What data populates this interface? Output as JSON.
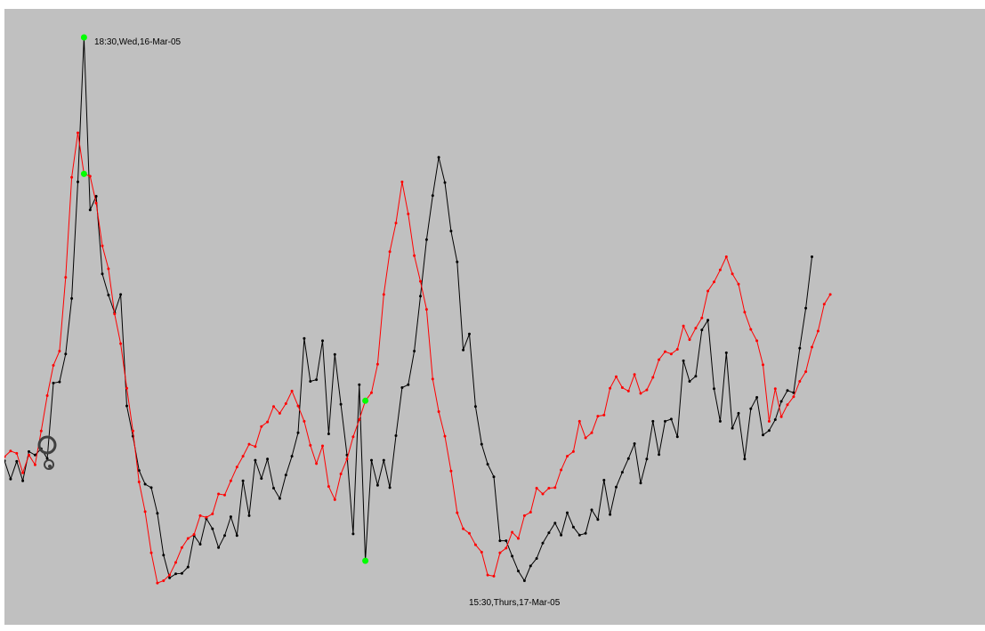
{
  "chart_data": {
    "type": "line",
    "title": "",
    "xlabel": "",
    "ylabel": "",
    "grid": false,
    "legend": "none",
    "colors": {
      "background": "#c0c0c0",
      "series_black": "#000000",
      "series_red": "#ff0000",
      "marker_highlight": "#00ff00",
      "cursor": "#404040"
    },
    "x_range": [
      0,
      160
    ],
    "y_range": [
      0,
      100
    ],
    "series": [
      {
        "color": "#000000",
        "values": [
          25.9,
          22.7,
          25.8,
          22.4,
          27.5,
          26.9,
          28.0,
          26.3,
          39.5,
          39.7,
          44.6,
          54.3,
          74.7,
          100.0,
          69.8,
          72.2,
          58.6,
          54.9,
          51.8,
          55.0,
          35.5,
          30.2,
          24.2,
          21.8,
          21.2,
          16.7,
          9.4,
          5.4,
          6.1,
          6.2,
          7.3,
          12.8,
          11.3,
          15.8,
          14.0,
          10.7,
          12.8,
          16.1,
          12.8,
          22.4,
          16.3,
          26.0,
          22.8,
          26.2,
          21.1,
          19.3,
          23.4,
          26.7,
          30.8,
          47.3,
          39.8,
          40.1,
          46.9,
          30.6,
          44.5,
          35.8,
          26.9,
          13.1,
          39.2,
          8.4,
          26.0,
          21.6,
          26.0,
          21.2,
          30.3,
          38.7,
          39.2,
          45.1,
          54.7,
          64.6,
          72.3,
          79.0,
          74.6,
          66.1,
          60.7,
          45.3,
          48.1,
          35.4,
          28.8,
          25.3,
          23.1,
          11.9,
          11.9,
          9.2,
          6.6,
          4.9,
          7.5,
          8.8,
          11.5,
          13.3,
          15.0,
          12.9,
          16.8,
          14.3,
          12.9,
          13.2,
          17.3,
          15.6,
          22.5,
          16.5,
          21.3,
          23.9,
          26.3,
          28.9,
          22.0,
          26.2,
          32.8,
          27.0,
          32.8,
          33.2,
          30.1,
          43.4,
          39.8,
          40.7,
          48.8,
          50.5,
          38.5,
          32.8,
          44.8,
          31.6,
          34.2,
          26.2,
          35.0,
          37.0,
          30.4,
          31.2,
          33.1,
          36.3,
          38.2,
          37.8,
          45.6,
          52.6,
          61.6
        ]
      },
      {
        "color": "#ff0000",
        "values": [
          26.6,
          27.6,
          27.2,
          23.8,
          26.9,
          25.2,
          31.1,
          37.3,
          42.6,
          45.1,
          58.0,
          75.5,
          83.3,
          76.1,
          75.7,
          71.0,
          63.5,
          59.5,
          51.6,
          46.4,
          38.6,
          31.1,
          22.2,
          17.0,
          9.8,
          4.5,
          4.9,
          5.9,
          8.1,
          10.7,
          12.3,
          13.0,
          16.3,
          16.0,
          16.6,
          20.1,
          19.9,
          22.4,
          24.8,
          26.7,
          28.8,
          28.4,
          31.9,
          32.7,
          35.4,
          34.2,
          35.9,
          38.1,
          35.5,
          32.8,
          28.6,
          25.4,
          28.5,
          21.4,
          19.1,
          23.6,
          26.2,
          30.1,
          33.1,
          36.4,
          37.8,
          42.8,
          55.0,
          62.5,
          67.5,
          74.7,
          69.1,
          61.8,
          57.3,
          52.4,
          40.2,
          34.5,
          30.2,
          24.1,
          16.8,
          14.0,
          13.2,
          11.2,
          9.9,
          5.9,
          5.7,
          9.8,
          10.6,
          13.4,
          12.3,
          16.3,
          16.9,
          21.1,
          20.1,
          21.1,
          21.2,
          24.3,
          26.7,
          27.5,
          32.8,
          29.9,
          30.8,
          33.7,
          33.9,
          38.6,
          40.6,
          38.7,
          38.1,
          41.0,
          37.7,
          38.3,
          40.5,
          43.6,
          45.0,
          44.6,
          45.4,
          49.5,
          47.1,
          49.1,
          50.9,
          55.6,
          57.2,
          59.3,
          61.6,
          58.6,
          56.8,
          51.9,
          48.9,
          46.9,
          42.7,
          32.8,
          38.5,
          33.6,
          35.7,
          37.1,
          39.8,
          41.5,
          45.8,
          48.6,
          53.3,
          55.0
        ]
      }
    ],
    "annotations": [
      {
        "text": "18:30,Wed,16-Mar-05"
      },
      {
        "text": "15:30,Thurs,17-Mar-05"
      }
    ],
    "highlight_points": [
      {
        "series": 0,
        "index": 13
      },
      {
        "series": 1,
        "index": 13
      },
      {
        "series": 0,
        "index": 59
      },
      {
        "series": 1,
        "index": 59
      }
    ]
  }
}
